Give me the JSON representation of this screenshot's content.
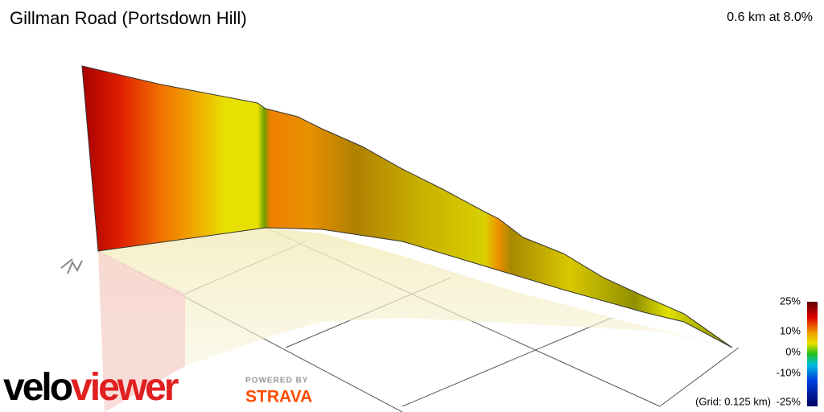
{
  "header": {
    "title": "Gillman Road (Portsdown Hill)",
    "summary": "0.6 km at 8.0%"
  },
  "legend": {
    "ticks": [
      "25%",
      "10%",
      "0%",
      "-10%",
      "-25%"
    ],
    "note": "(Grid: 0.125 km)"
  },
  "branding": {
    "logo_part1": "velo",
    "logo_part2": "viewer",
    "powered_by": "POWERED BY",
    "strava": "STRAVA"
  }
}
